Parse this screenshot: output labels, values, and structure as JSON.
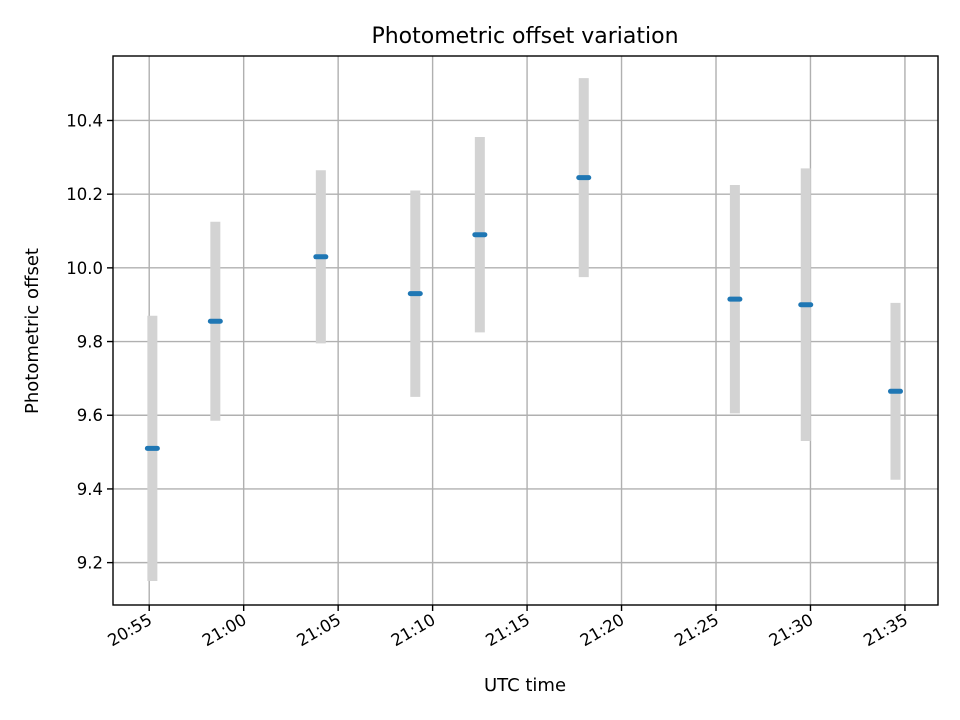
{
  "chart_data": {
    "type": "scatter",
    "title": "Photometric offset variation",
    "xlabel": "UTC time",
    "ylabel": "Photometric offset",
    "x_ticks": [
      "20:55",
      "21:00",
      "21:05",
      "21:10",
      "21:15",
      "21:20",
      "21:25",
      "21:30",
      "21:35"
    ],
    "y_ticks": [
      "9.2",
      "9.4",
      "9.6",
      "9.8",
      "10.0",
      "10.2",
      "10.4"
    ],
    "xlim": [
      "20:53:05",
      "21:36:45"
    ],
    "ylim": [
      9.085,
      10.575
    ],
    "grid": true,
    "colors": {
      "marker": "#1f77b4",
      "errorbar": "#d3d3d3"
    },
    "points": [
      {
        "x": "20:55:10",
        "y": 9.51,
        "yerr": 0.36
      },
      {
        "x": "20:58:30",
        "y": 9.855,
        "yerr": 0.27
      },
      {
        "x": "21:04:05",
        "y": 10.03,
        "yerr": 0.235
      },
      {
        "x": "21:09:05",
        "y": 9.93,
        "yerr": 0.28
      },
      {
        "x": "21:12:30",
        "y": 10.09,
        "yerr": 0.265
      },
      {
        "x": "21:18:00",
        "y": 10.245,
        "yerr": 0.27
      },
      {
        "x": "21:26:00",
        "y": 9.915,
        "yerr": 0.31
      },
      {
        "x": "21:29:45",
        "y": 9.9,
        "yerr": 0.37
      },
      {
        "x": "21:34:30",
        "y": 9.665,
        "yerr": 0.24
      }
    ]
  }
}
